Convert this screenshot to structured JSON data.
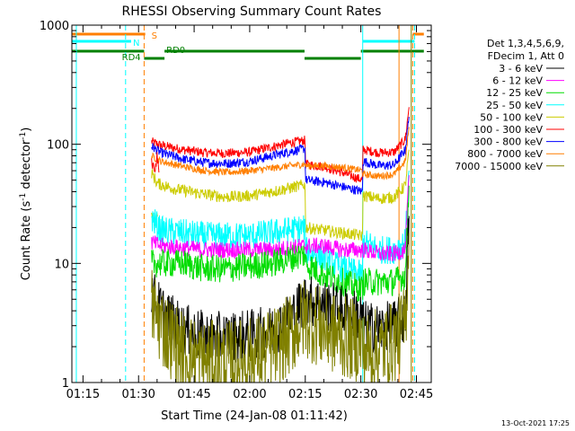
{
  "chart_data": {
    "type": "line",
    "title": "RHESSI Observing Summary Count Rates",
    "xlabel": "Start Time (24-Jan-08 01:11:42)",
    "ylabel_main": "Count Rate (s",
    "ylabel_exp1": "-1",
    "ylabel_mid": " detector",
    "ylabel_exp2": "-1",
    "ylabel_end": ")",
    "footer": "13-Oct-2021 17:25",
    "yscale": "log",
    "ylim": [
      1,
      1000
    ],
    "xlim_minutes": [
      72,
      169
    ],
    "x_ticks": [
      {
        "label": "01:15",
        "min": 75
      },
      {
        "label": "01:30",
        "min": 90
      },
      {
        "label": "01:45",
        "min": 105
      },
      {
        "label": "02:00",
        "min": 120
      },
      {
        "label": "02:15",
        "min": 135
      },
      {
        "label": "02:30",
        "min": 150
      },
      {
        "label": "02:45",
        "min": 165
      }
    ],
    "y_ticks": [
      {
        "label": "1",
        "value": 1
      },
      {
        "label": "10",
        "value": 10
      },
      {
        "label": "100",
        "value": 100
      },
      {
        "label": "1000",
        "value": 1000
      }
    ],
    "legend": {
      "header1": "Det 1,3,4,5,6,9,",
      "header2": "FDecim 1, Att 0",
      "entries": [
        {
          "label": "3 - 6 keV",
          "color": "#000000"
        },
        {
          "label": "6 - 12 keV",
          "color": "#ff00ff"
        },
        {
          "label": "12 - 25 keV",
          "color": "#00dd00"
        },
        {
          "label": "25 - 50 keV",
          "color": "#00ffff"
        },
        {
          "label": "50 - 100 keV",
          "color": "#cccc00"
        },
        {
          "label": "100 - 300 keV",
          "color": "#ff0000"
        },
        {
          "label": "300 - 800 keV",
          "color": "#0000ff"
        },
        {
          "label": "800 - 7000 keV",
          "color": "#ff7f00"
        },
        {
          "label": "7000 - 15000 keV",
          "color": "#808000"
        }
      ]
    },
    "series": [
      {
        "color": "#ff0000",
        "noise": 0.04,
        "points": [
          [
            93.5,
            105
          ],
          [
            96,
            98
          ],
          [
            102,
            90
          ],
          [
            108,
            85
          ],
          [
            114,
            84
          ],
          [
            120,
            86
          ],
          [
            126,
            95
          ],
          [
            131,
            103
          ],
          [
            134.9,
            108
          ],
          [
            135.1,
            68
          ],
          [
            140,
            65
          ],
          [
            145,
            58
          ],
          [
            149,
            52
          ],
          [
            150.4,
            50
          ],
          [
            150.6,
            90
          ],
          [
            155,
            85
          ],
          [
            159,
            86
          ],
          [
            162,
            110
          ],
          [
            163,
            205
          ]
        ]
      },
      {
        "color": "#0000ff",
        "noise": 0.04,
        "points": [
          [
            93.5,
            96
          ],
          [
            96,
            85
          ],
          [
            102,
            75
          ],
          [
            108,
            70
          ],
          [
            114,
            69
          ],
          [
            120,
            72
          ],
          [
            126,
            80
          ],
          [
            131,
            87
          ],
          [
            134.9,
            92
          ],
          [
            135.1,
            50
          ],
          [
            140,
            48
          ],
          [
            145,
            44
          ],
          [
            150.4,
            40
          ],
          [
            150.6,
            72
          ],
          [
            155,
            66
          ],
          [
            159,
            67
          ],
          [
            162,
            90
          ],
          [
            163,
            170
          ]
        ]
      },
      {
        "color": "#ff7f00",
        "noise": 0.03,
        "points": [
          [
            93.5,
            80
          ],
          [
            96,
            72
          ],
          [
            102,
            65
          ],
          [
            108,
            60
          ],
          [
            114,
            58
          ],
          [
            120,
            60
          ],
          [
            126,
            63
          ],
          [
            131,
            66
          ],
          [
            134.9,
            68
          ],
          [
            135.1,
            66
          ],
          [
            140,
            66
          ],
          [
            145,
            64
          ],
          [
            150.4,
            60
          ],
          [
            150.6,
            56
          ],
          [
            155,
            54
          ],
          [
            159,
            56
          ],
          [
            162,
            72
          ],
          [
            163,
            140
          ]
        ]
      },
      {
        "color": "#ff0000",
        "noise": 0.04,
        "points": [
          [
            93.5,
            70
          ],
          [
            94.5,
            62
          ],
          [
            95,
            80
          ],
          [
            95.5,
            58
          ]
        ]
      },
      {
        "color": "#cccc00",
        "noise": 0.05,
        "points": [
          [
            93.5,
            58
          ],
          [
            95,
            47
          ],
          [
            100,
            42
          ],
          [
            108,
            38
          ],
          [
            114,
            36
          ],
          [
            120,
            37
          ],
          [
            126,
            40
          ],
          [
            131,
            43
          ],
          [
            134.9,
            46
          ],
          [
            135.1,
            20
          ],
          [
            140,
            19
          ],
          [
            145,
            18
          ],
          [
            150.4,
            17
          ],
          [
            150.6,
            37
          ],
          [
            155,
            35
          ],
          [
            159,
            36
          ],
          [
            162,
            45
          ],
          [
            163,
            90
          ]
        ]
      },
      {
        "color": "#cccc00",
        "noise": 0.05,
        "points": [
          [
            93.5,
            24
          ],
          [
            94.5,
            22
          ],
          [
            95.2,
            25
          ]
        ]
      },
      {
        "color": "#00ffff",
        "noise": 0.12,
        "points": [
          [
            93.5,
            24
          ],
          [
            96,
            19
          ],
          [
            102,
            18
          ],
          [
            108,
            17
          ],
          [
            114,
            17
          ],
          [
            120,
            17
          ],
          [
            126,
            18
          ],
          [
            131,
            19
          ],
          [
            134.9,
            20
          ],
          [
            135.1,
            13
          ],
          [
            140,
            11
          ],
          [
            145,
            9
          ],
          [
            150.4,
            8
          ],
          [
            150.6,
            15
          ],
          [
            155,
            13
          ],
          [
            159,
            13
          ],
          [
            162,
            15
          ],
          [
            163,
            60
          ]
        ]
      },
      {
        "color": "#ff00ff",
        "noise": 0.07,
        "points": [
          [
            93.5,
            15
          ],
          [
            96,
            14
          ],
          [
            102,
            13.5
          ],
          [
            108,
            13
          ],
          [
            114,
            13
          ],
          [
            120,
            13
          ],
          [
            126,
            13
          ],
          [
            131,
            13.5
          ],
          [
            134.9,
            14
          ],
          [
            135.1,
            14
          ],
          [
            140,
            14
          ],
          [
            145,
            13
          ],
          [
            150.4,
            13
          ],
          [
            150.6,
            13
          ],
          [
            155,
            12
          ],
          [
            159,
            12
          ],
          [
            162,
            13
          ],
          [
            163,
            55
          ]
        ]
      },
      {
        "color": "#00dd00",
        "noise": 0.12,
        "points": [
          [
            93.5,
            10
          ],
          [
            96,
            10
          ],
          [
            102,
            10
          ],
          [
            108,
            9
          ],
          [
            114,
            9
          ],
          [
            120,
            9.5
          ],
          [
            126,
            10
          ],
          [
            131,
            11
          ],
          [
            134.9,
            12
          ],
          [
            135.1,
            10
          ],
          [
            140,
            8
          ],
          [
            145,
            7
          ],
          [
            150.4,
            6
          ],
          [
            150.6,
            7
          ],
          [
            155,
            7
          ],
          [
            159,
            7
          ],
          [
            162,
            8
          ],
          [
            163,
            45
          ]
        ]
      },
      {
        "color": "#000000",
        "noise": 0.22,
        "points": [
          [
            93.5,
            6
          ],
          [
            95,
            4.5
          ],
          [
            98,
            3.5
          ],
          [
            102,
            2.8
          ],
          [
            108,
            2.4
          ],
          [
            114,
            2.4
          ],
          [
            120,
            2.5
          ],
          [
            126,
            2.7
          ],
          [
            131,
            3.5
          ],
          [
            134.9,
            5
          ],
          [
            140,
            4.5
          ],
          [
            145,
            4
          ],
          [
            150.4,
            3.5
          ],
          [
            150.6,
            3
          ],
          [
            155,
            2.8
          ],
          [
            159,
            3
          ],
          [
            162,
            3.5
          ],
          [
            163,
            25
          ]
        ]
      },
      {
        "color": "#808000",
        "noise": 0.35,
        "points": [
          [
            93.5,
            4.5
          ],
          [
            95,
            3.5
          ],
          [
            98,
            2.5
          ],
          [
            102,
            1.8
          ],
          [
            108,
            1.5
          ],
          [
            114,
            1.5
          ],
          [
            120,
            1.6
          ],
          [
            126,
            1.9
          ],
          [
            131,
            2.5
          ],
          [
            134.9,
            3.5
          ],
          [
            140,
            2.8
          ],
          [
            145,
            2.4
          ],
          [
            150.4,
            2.2
          ],
          [
            150.6,
            1.8
          ],
          [
            155,
            1.9
          ],
          [
            159,
            2.2
          ],
          [
            162,
            3
          ],
          [
            163,
            18
          ]
        ]
      }
    ],
    "vlines": [
      {
        "x": 73.2,
        "color": "#00ffff",
        "dash": false
      },
      {
        "x": 86.5,
        "color": "#00ffff",
        "dash": true
      },
      {
        "x": 91.5,
        "color": "#ff7f00",
        "dash": true
      },
      {
        "x": 150.5,
        "color": "#00ffff",
        "dash": false
      },
      {
        "x": 160.3,
        "color": "#ff7f00",
        "dash": false
      },
      {
        "x": 163.6,
        "color": "#808000",
        "dash": false
      },
      {
        "x": 164,
        "color": "#ff7f00",
        "dash": true
      },
      {
        "x": 164.5,
        "color": "#00ffff",
        "dash": true
      }
    ],
    "flag_segments": [
      {
        "name": "S",
        "color": "#ff7f00",
        "y": 38,
        "segments": [
          [
            72,
            91.8
          ],
          [
            164,
            167
          ]
        ]
      },
      {
        "name": "N",
        "color": "#00ffff",
        "y": 46,
        "segments": [
          [
            72,
            88
          ],
          [
            150.5,
            164.5
          ]
        ]
      },
      {
        "name": "RD0",
        "color": "#008000",
        "y": 57,
        "segments": [
          [
            72,
            91.5
          ],
          [
            97,
            134.8
          ],
          [
            150,
            167
          ]
        ]
      },
      {
        "name": "RD4",
        "color": "#008000",
        "y": 65,
        "segments": [
          [
            91.5,
            97
          ],
          [
            134.8,
            150
          ]
        ]
      }
    ],
    "flag_labels": [
      {
        "text": "S",
        "color": "#ff7f00",
        "x": 93.5,
        "y": 43
      },
      {
        "text": "N",
        "color": "#00ffff",
        "x": 88.5,
        "y": 51
      },
      {
        "text": "RD0",
        "color": "#008000",
        "x": 97.5,
        "y": 59
      },
      {
        "text": "RD4",
        "color": "#008000",
        "x": 85.5,
        "y": 67
      }
    ]
  }
}
